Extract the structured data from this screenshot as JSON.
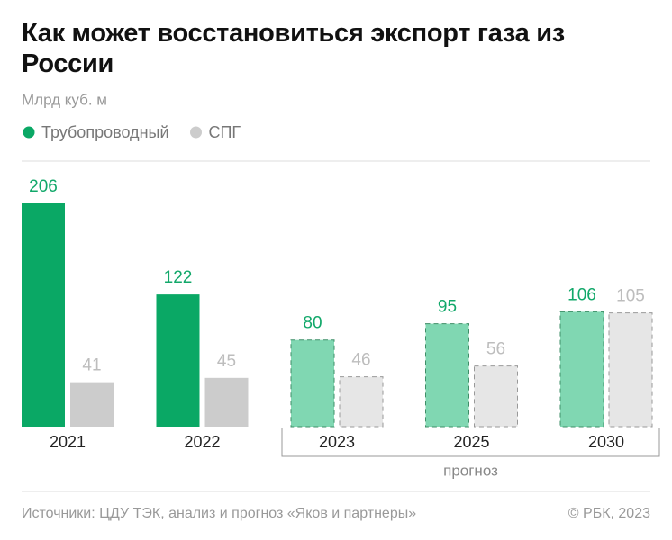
{
  "chart_data": {
    "type": "bar",
    "title": "Как может восстановиться экспорт газа из России",
    "subtitle": "Млрд куб. м",
    "categories": [
      "2021",
      "2022",
      "2023",
      "2025",
      "2030"
    ],
    "series": [
      {
        "name": "Трубопроводный",
        "color": "#0aa865",
        "forecast_color": "#80d7b2",
        "label_color": "#12a86a",
        "values": [
          206,
          122,
          80,
          95,
          106
        ]
      },
      {
        "name": "СПГ",
        "color": "#cccccc",
        "forecast_color": "#e6e6e6",
        "label_color": "#bdbdbd",
        "values": [
          41,
          45,
          46,
          56,
          105
        ]
      }
    ],
    "forecast": {
      "label": "прогноз",
      "start": 2
    },
    "source": "Источники: ЦДУ ТЭК, анализ и прогноз «Яков и партнеры»",
    "credit": "© РБК, 2023"
  }
}
